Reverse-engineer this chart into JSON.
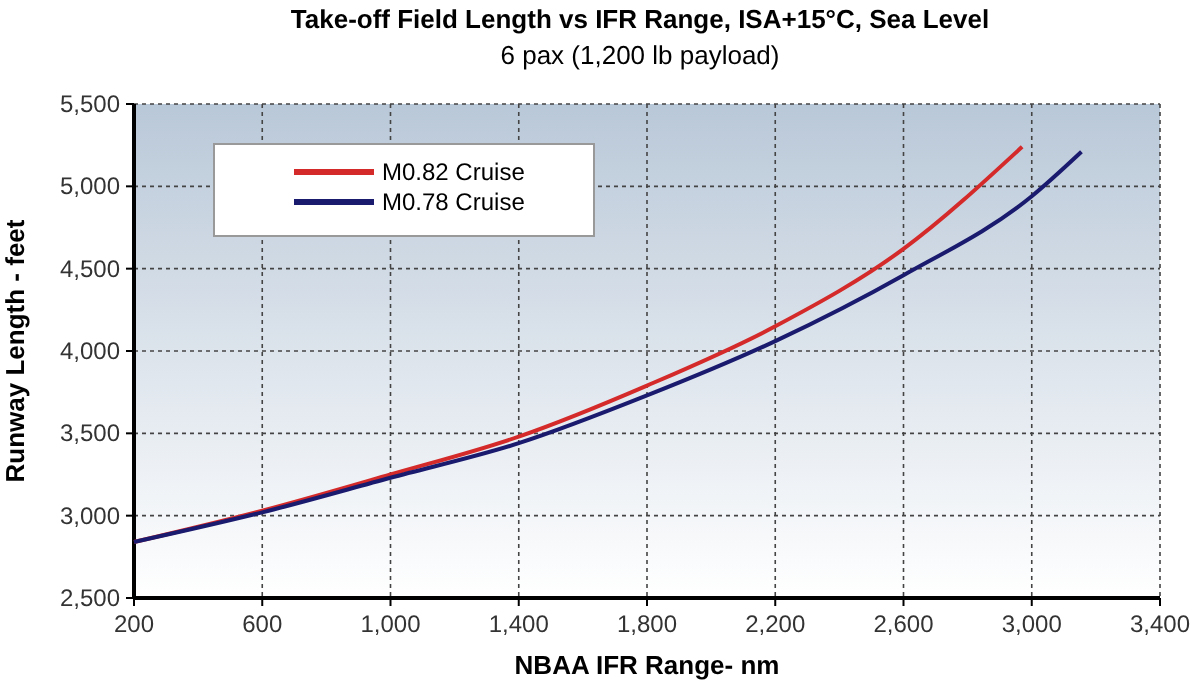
{
  "chart_data": {
    "type": "line",
    "title": "Take-off Field Length vs IFR Range, ISA+15°C, Sea Level",
    "subtitle": "6 pax (1,200 lb payload)",
    "xlabel": "NBAA IFR Range- nm",
    "ylabel": "Runway Length - feet",
    "xlim": [
      200,
      3400
    ],
    "xticks": [
      {
        "value": 200,
        "label": "200"
      },
      {
        "value": 600,
        "label": "600"
      },
      {
        "value": 1000,
        "label": "1,000"
      },
      {
        "value": 1400,
        "label": "1,400"
      },
      {
        "value": 1800,
        "label": "1,800"
      },
      {
        "value": 2200,
        "label": "2,200"
      },
      {
        "value": 2600,
        "label": "2,600"
      },
      {
        "value": 3000,
        "label": "3,000"
      },
      {
        "value": 3400,
        "label": "3,400"
      }
    ],
    "ylim": [
      2500,
      5500
    ],
    "yticks": [
      {
        "value": 2500,
        "label": "2,500"
      },
      {
        "value": 3000,
        "label": "3,000"
      },
      {
        "value": 3500,
        "label": "3,500"
      },
      {
        "value": 4000,
        "label": "4,000"
      },
      {
        "value": 4500,
        "label": "4,500"
      },
      {
        "value": 5000,
        "label": "5,000"
      },
      {
        "value": 5500,
        "label": "5,500"
      }
    ],
    "grid": true,
    "legend": "top left",
    "line_style": "solid",
    "series": [
      {
        "name": "M0.82 Cruise",
        "color": "#d42a2a",
        "x": [
          200,
          600,
          1000,
          1400,
          1800,
          2200,
          2600,
          2970
        ],
        "values": [
          2840,
          3030,
          3250,
          3480,
          3790,
          4150,
          4620,
          5240
        ]
      },
      {
        "name": "M0.78 Cruise",
        "color": "#1a1a6e",
        "x": [
          200,
          600,
          1000,
          1400,
          1800,
          2200,
          2600,
          3000,
          3155
        ],
        "values": [
          2840,
          3020,
          3230,
          3440,
          3730,
          4060,
          4460,
          4940,
          5210
        ]
      }
    ]
  }
}
